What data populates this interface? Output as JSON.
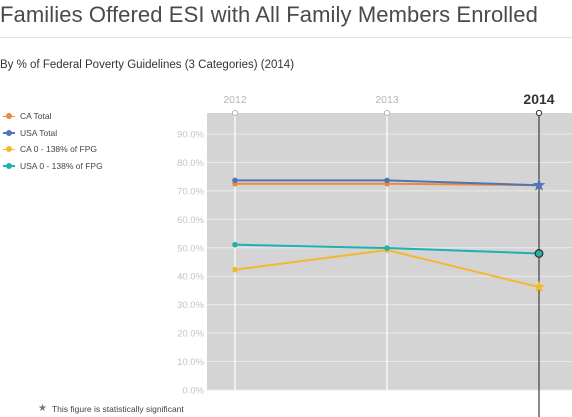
{
  "page": {
    "title": "Families Offered ESI with All Family Members Enrolled",
    "subtitle": "By % of Federal Poverty Guidelines (3 Categories) (2014)",
    "footnote": "This figure is statistically significant"
  },
  "chart_data": {
    "type": "line",
    "x": [
      "2012",
      "2013",
      "2014"
    ],
    "selected_x": "2014",
    "ylim": [
      0,
      90
    ],
    "yticks": [
      {
        "value": 90,
        "label": "90.0%"
      },
      {
        "value": 80,
        "label": "80.0%"
      },
      {
        "value": 70,
        "label": "70.0%"
      },
      {
        "value": 60,
        "label": "60.0%"
      },
      {
        "value": 50,
        "label": "50.0%"
      },
      {
        "value": 40,
        "label": "40.0%"
      },
      {
        "value": 30,
        "label": "30.0%"
      },
      {
        "value": 20,
        "label": "20.0%"
      },
      {
        "value": 10,
        "label": "10.0%"
      },
      {
        "value": 0,
        "label": "0.0%"
      }
    ],
    "grid": true,
    "legend_position": "left",
    "series": [
      {
        "name": "CA Total",
        "color": "#ee8a3c",
        "values": [
          72.5,
          72.5,
          72.0
        ],
        "significant": [
          false,
          false,
          true
        ]
      },
      {
        "name": "USA Total",
        "color": "#4e74bb",
        "values": [
          73.7,
          73.7,
          72.0
        ],
        "significant": [
          false,
          false,
          true
        ]
      },
      {
        "name": "CA 0 - 138% of FPG",
        "color": "#f2b92e",
        "values": [
          42.3,
          49.2,
          36.2
        ],
        "significant": [
          false,
          false,
          true
        ]
      },
      {
        "name": "USA 0 - 138% of FPG",
        "color": "#1fb1ae",
        "values": [
          51.1,
          49.9,
          48.0
        ],
        "significant": [
          false,
          false,
          false
        ]
      }
    ]
  }
}
